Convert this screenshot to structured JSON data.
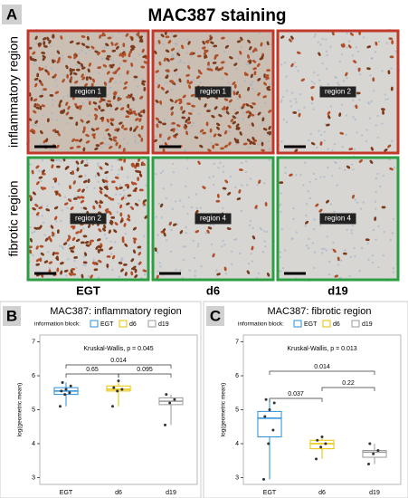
{
  "panel_a": {
    "label": "A",
    "title": "MAC387 staining",
    "rows": [
      "inflammatory region",
      "fibrotic region"
    ],
    "columns": [
      "EGT",
      "d6",
      "d19"
    ],
    "regions": [
      [
        "region 1",
        "region 1",
        "region 2"
      ],
      [
        "region 2",
        "region 4",
        "region 4"
      ]
    ]
  },
  "chart_data": [
    {
      "type": "box",
      "panel": "B",
      "title": "MAC387: inflammatory region",
      "legend_title": "information block:",
      "y_label": "log(geometric mean)",
      "annotation": "Kruskal-Wallis, p = 0.045",
      "categories": [
        "EGT",
        "d6",
        "d19"
      ],
      "ylim": [
        2.8,
        7.2
      ],
      "yticks": [
        3,
        4,
        5,
        6,
        7
      ],
      "comparisons": [
        0.65,
        0.014,
        0.095
      ],
      "series": [
        {
          "name": "EGT",
          "color": "#2a8fd8",
          "whisker_low": 5.1,
          "q1": 5.45,
          "median": 5.55,
          "q3": 5.65,
          "whisker_high": 5.8,
          "points": [
            5.1,
            5.45,
            5.5,
            5.55,
            5.6,
            5.7,
            5.8
          ]
        },
        {
          "name": "d6",
          "color": "#e6c200",
          "whisker_low": 5.1,
          "q1": 5.55,
          "median": 5.6,
          "q3": 5.7,
          "whisker_high": 5.85,
          "points": [
            5.1,
            5.55,
            5.6,
            5.65,
            5.85
          ]
        },
        {
          "name": "d19",
          "color": "#9a9a9a",
          "whisker_low": 4.55,
          "q1": 5.15,
          "median": 5.25,
          "q3": 5.35,
          "whisker_high": 5.45,
          "points": [
            4.55,
            5.2,
            5.3,
            5.45
          ]
        }
      ]
    },
    {
      "type": "box",
      "panel": "C",
      "title": "MAC387: fibrotic region",
      "legend_title": "information block:",
      "y_label": "log(geometric mean)",
      "annotation": "Kruskal-Wallis, p = 0.013",
      "categories": [
        "EGT",
        "d6",
        "d19"
      ],
      "ylim": [
        2.8,
        7.2
      ],
      "yticks": [
        3,
        4,
        5,
        6,
        7
      ],
      "comparisons": [
        0.037,
        0.014,
        0.22
      ],
      "series": [
        {
          "name": "EGT",
          "color": "#2a8fd8",
          "whisker_low": 2.95,
          "q1": 4.2,
          "median": 4.75,
          "q3": 4.95,
          "whisker_high": 5.3,
          "points": [
            2.95,
            4.0,
            4.4,
            4.8,
            5.0,
            5.2,
            5.3
          ]
        },
        {
          "name": "d6",
          "color": "#e6c200",
          "whisker_low": 3.55,
          "q1": 3.85,
          "median": 4.0,
          "q3": 4.1,
          "whisker_high": 4.2,
          "points": [
            3.55,
            3.9,
            4.0,
            4.1,
            4.2
          ]
        },
        {
          "name": "d19",
          "color": "#9a9a9a",
          "whisker_low": 3.4,
          "q1": 3.6,
          "median": 3.75,
          "q3": 3.8,
          "whisker_high": 4.0,
          "points": [
            3.4,
            3.7,
            3.8,
            4.0
          ]
        }
      ]
    }
  ]
}
